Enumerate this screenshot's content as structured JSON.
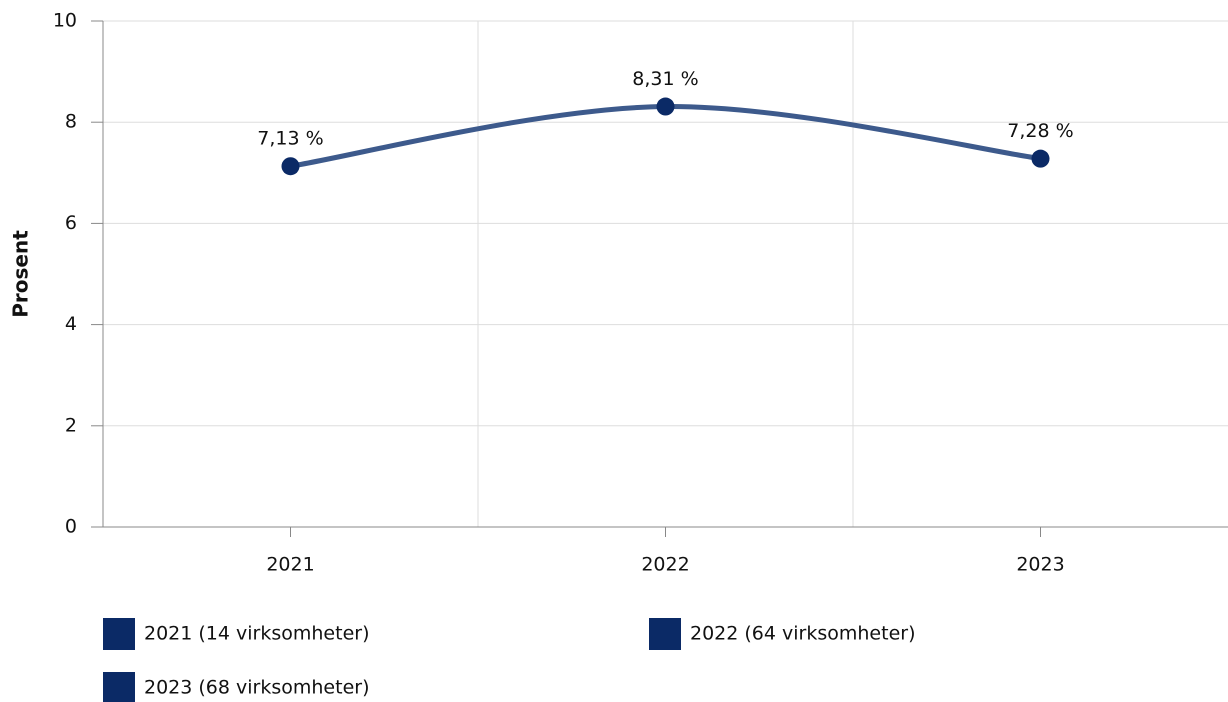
{
  "chart_data": {
    "type": "line",
    "y_label": "Prosent",
    "categories": [
      "2021",
      "2022",
      "2023"
    ],
    "series": [
      {
        "color": "#3d5a8c",
        "point_color": "#0b2a66",
        "values": [
          7.13,
          8.31,
          7.28
        ],
        "value_labels": [
          "7,13 %",
          "8,31 %",
          "7,28 %"
        ]
      }
    ],
    "legend": [
      {
        "name": "2021 (14 virksomheter)",
        "color": "#0b2a66"
      },
      {
        "name": "2022 (64 virksomheter)",
        "color": "#0b2a66"
      },
      {
        "name": "2023 (68 virksomheter)",
        "color": "#0b2a66"
      }
    ],
    "ylim": [
      0,
      10
    ],
    "yticks": [
      0,
      2,
      4,
      6,
      8,
      10
    ],
    "grid": true,
    "smooth": true
  }
}
